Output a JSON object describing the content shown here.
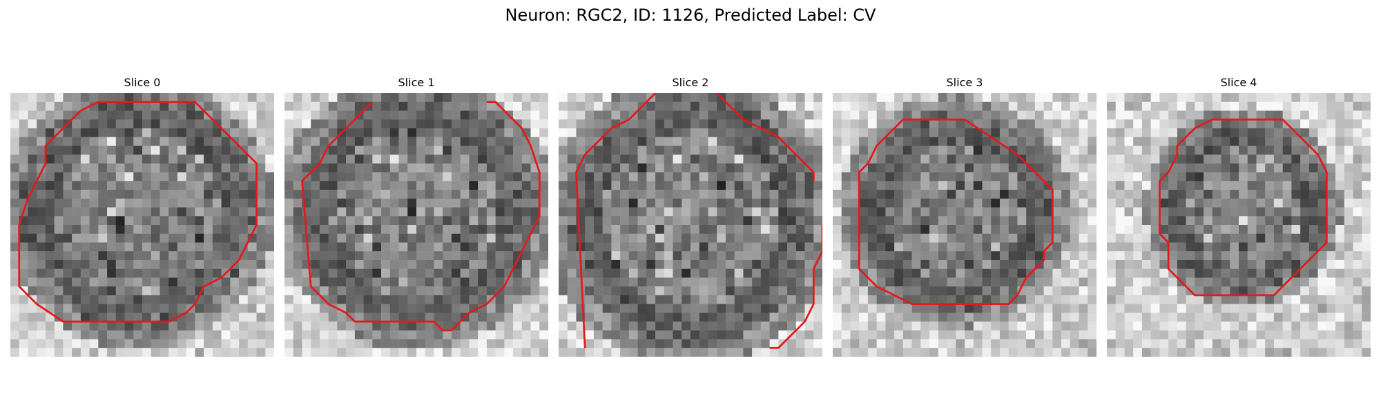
{
  "figure": {
    "title": "Neuron: RGC2, ID: 1126, Predicted Label: CV"
  },
  "outline_color": "#e41a1c",
  "slices": [
    {
      "title": "Slice 0",
      "contour": [
        [
          10,
          1
        ],
        [
          21,
          1
        ],
        [
          23,
          3
        ],
        [
          26,
          6
        ],
        [
          28,
          8
        ],
        [
          28,
          15
        ],
        [
          27,
          17
        ],
        [
          26,
          19
        ],
        [
          24,
          21
        ],
        [
          22,
          22
        ],
        [
          21,
          24
        ],
        [
          20,
          25
        ],
        [
          18,
          26
        ],
        [
          6,
          26
        ],
        [
          3,
          24
        ],
        [
          1,
          22
        ],
        [
          1,
          15
        ],
        [
          2,
          12
        ],
        [
          3,
          10
        ],
        [
          4,
          8
        ],
        [
          4,
          6
        ],
        [
          6,
          4
        ],
        [
          8,
          2
        ]
      ],
      "open": false
    },
    {
      "title": "Slice 1",
      "contour": [
        [
          10,
          1
        ],
        [
          7,
          4
        ],
        [
          5,
          6
        ],
        [
          4,
          8
        ],
        [
          3,
          9
        ],
        [
          2,
          10
        ],
        [
          3,
          22
        ],
        [
          5,
          24
        ],
        [
          7,
          25
        ],
        [
          8,
          26
        ],
        [
          17,
          26
        ],
        [
          18,
          27
        ],
        [
          19,
          27
        ],
        [
          20,
          26
        ],
        [
          21,
          25
        ],
        [
          23,
          24
        ],
        [
          25,
          22
        ],
        [
          26,
          20
        ],
        [
          27,
          18
        ],
        [
          28,
          16
        ],
        [
          29,
          14
        ],
        [
          29,
          9
        ],
        [
          28,
          6
        ],
        [
          27,
          4
        ],
        [
          25,
          2
        ],
        [
          24,
          1
        ],
        [
          23,
          1
        ]
      ],
      "open": true
    },
    {
      "title": "Slice 2",
      "contour": [
        [
          [
            11,
            0
          ],
          [
            9,
            2
          ],
          [
            8,
            3
          ],
          [
            6,
            4
          ],
          [
            5,
            5
          ],
          [
            3,
            7
          ],
          [
            2,
            9
          ],
          [
            3,
            29
          ]
        ],
        [
          [
            18,
            0
          ],
          [
            21,
            3
          ],
          [
            23,
            4
          ],
          [
            25,
            5
          ],
          [
            27,
            7
          ],
          [
            29,
            9
          ],
          [
            29,
            10
          ]
        ],
        [
          [
            30,
            15
          ],
          [
            30,
            18
          ],
          [
            29,
            20
          ],
          [
            29,
            24
          ],
          [
            28,
            26
          ],
          [
            26,
            28
          ],
          [
            25,
            29
          ],
          [
            24,
            29
          ]
        ]
      ],
      "open": true,
      "multi": true
    },
    {
      "title": "Slice 3",
      "contour": [
        [
          8,
          3
        ],
        [
          15,
          3
        ],
        [
          18,
          5
        ],
        [
          21,
          7
        ],
        [
          23,
          9
        ],
        [
          25,
          11
        ],
        [
          25,
          17
        ],
        [
          24,
          18
        ],
        [
          24,
          19
        ],
        [
          22,
          21
        ],
        [
          21,
          23
        ],
        [
          20,
          24
        ],
        [
          9,
          24
        ],
        [
          7,
          23
        ],
        [
          5,
          22
        ],
        [
          4,
          21
        ],
        [
          3,
          20
        ],
        [
          3,
          9
        ],
        [
          4,
          8
        ],
        [
          5,
          6
        ],
        [
          7,
          4
        ]
      ],
      "open": false
    },
    {
      "title": "Slice 4",
      "contour": [
        [
          12,
          3
        ],
        [
          20,
          3
        ],
        [
          22,
          5
        ],
        [
          24,
          7
        ],
        [
          25,
          9
        ],
        [
          25,
          17
        ],
        [
          22,
          20
        ],
        [
          20,
          22
        ],
        [
          19,
          23
        ],
        [
          10,
          23
        ],
        [
          9,
          22
        ],
        [
          7,
          20
        ],
        [
          7,
          19
        ],
        [
          7,
          17
        ],
        [
          6,
          16
        ],
        [
          6,
          10
        ],
        [
          7,
          9
        ],
        [
          8,
          7
        ],
        [
          8,
          6
        ],
        [
          10,
          4
        ]
      ],
      "open": false
    }
  ]
}
